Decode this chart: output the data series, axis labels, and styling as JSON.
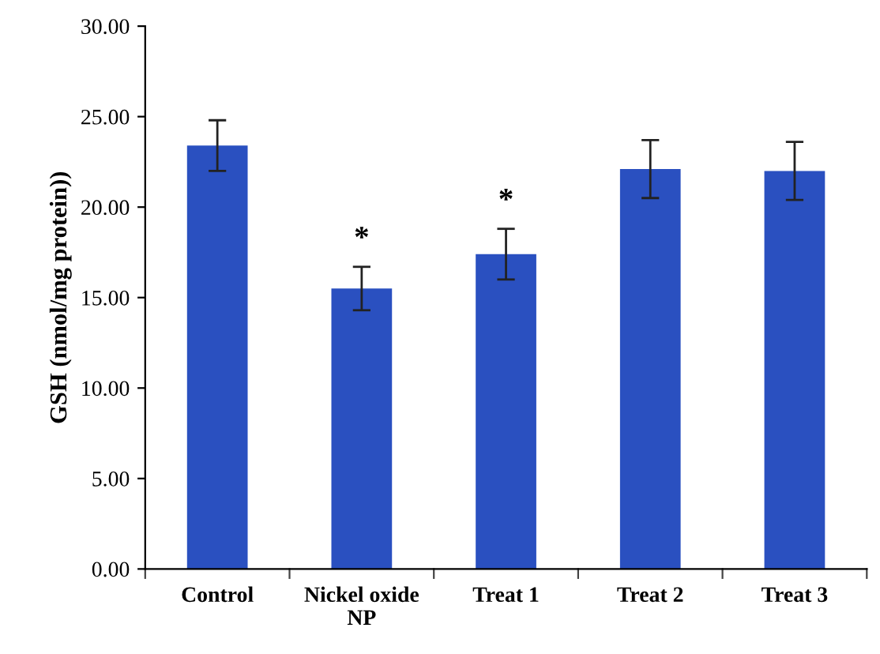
{
  "chart_data": {
    "type": "bar",
    "ylabel": "GSH (nmol/mg protein))",
    "categories": [
      "Control",
      "Nickel oxide\nNP",
      "Treat 1",
      "Treat 2",
      "Treat 3"
    ],
    "values": [
      23.4,
      15.5,
      17.4,
      22.1,
      22.0
    ],
    "errors": [
      1.4,
      1.2,
      1.4,
      1.6,
      1.6
    ],
    "color": "#2a50c0",
    "ylim": [
      0,
      30
    ],
    "yticks": [
      {
        "value": 0,
        "label": "0.00"
      },
      {
        "value": 5,
        "label": "5.00"
      },
      {
        "value": 10,
        "label": "10.00"
      },
      {
        "value": 15,
        "label": "15.00"
      },
      {
        "value": 20,
        "label": "20.00"
      },
      {
        "value": 25,
        "label": "25.00"
      },
      {
        "value": 30,
        "label": "30.00"
      }
    ],
    "annotations": [
      "*",
      "*"
    ],
    "grid": false,
    "legend": false
  }
}
